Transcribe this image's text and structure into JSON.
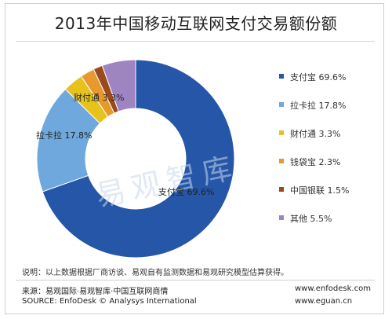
{
  "chart_data": {
    "type": "pie",
    "title": "2013年中国移动互联网支付交易额份额",
    "series": [
      {
        "name": "支付宝",
        "value": 69.6,
        "label": "支付宝 69.6%",
        "color": "#2556a8"
      },
      {
        "name": "拉卡拉",
        "value": 17.8,
        "label": "拉卡拉 17.8%",
        "color": "#6fa8dc"
      },
      {
        "name": "财付通",
        "value": 3.3,
        "label": "财付通 3.3%",
        "color": "#e6c21a"
      },
      {
        "name": "钱袋宝",
        "value": 2.3,
        "label": "钱袋宝 2.3%",
        "color": "#e69a2e"
      },
      {
        "name": "中国银联",
        "value": 1.5,
        "label": "中国银联 1.5%",
        "color": "#9b4a1c"
      },
      {
        "name": "其他",
        "value": 5.5,
        "label": "其他 5.5%",
        "color": "#9f84c2"
      }
    ],
    "slice_labels": [
      {
        "text": "支付宝 69.6%"
      },
      {
        "text": "拉卡拉 17.8%"
      },
      {
        "text": "财付通 3.3%"
      }
    ],
    "legend_position": "right",
    "donut": true
  },
  "watermark": "易观智库",
  "note": "说明：以上数据根据厂商访谈、易观自有监测数据和易观研究模型估算获得。",
  "source_cn": "来源：易观国际·易观智库·中国互联网商情",
  "source_en": "SOURCE: EnfoDesk © Analysys International",
  "url1": "www.enfodesk.com",
  "url2": "www.eguan.cn"
}
